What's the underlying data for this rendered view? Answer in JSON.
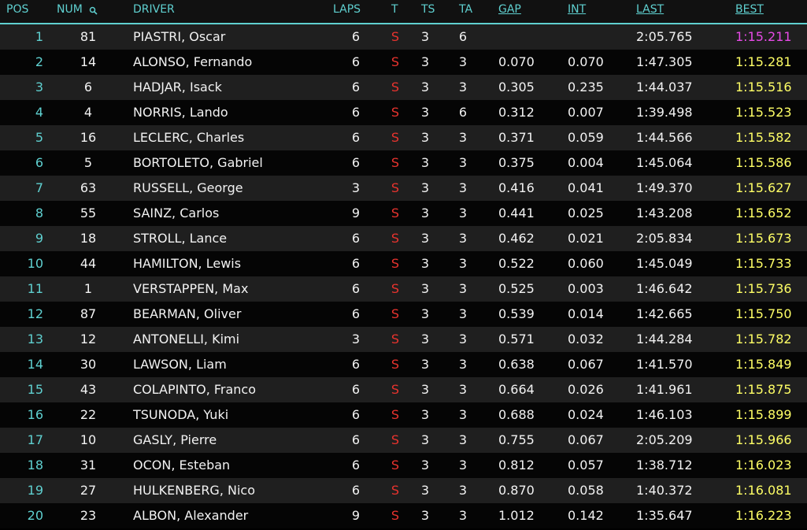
{
  "table": {
    "columns": [
      "POS",
      "NUM",
      "DRIVER",
      "LAPS",
      "T",
      "TS",
      "TA",
      "GAP",
      "INT",
      "LAST",
      "BEST"
    ],
    "rows": [
      [
        1,
        81,
        "PIASTRI, Oscar",
        6,
        "S",
        3,
        6,
        null,
        null,
        "2:05.765",
        "1:15.211"
      ],
      [
        2,
        14,
        "ALONSO, Fernando",
        6,
        "S",
        3,
        3,
        "0.070",
        "0.070",
        "1:47.305",
        "1:15.281"
      ],
      [
        3,
        6,
        "HADJAR, Isack",
        6,
        "S",
        3,
        3,
        "0.305",
        "0.235",
        "1:44.037",
        "1:15.516"
      ],
      [
        4,
        4,
        "NORRIS, Lando",
        6,
        "S",
        3,
        6,
        "0.312",
        "0.007",
        "1:39.498",
        "1:15.523"
      ],
      [
        5,
        16,
        "LECLERC, Charles",
        6,
        "S",
        3,
        3,
        "0.371",
        "0.059",
        "1:44.566",
        "1:15.582"
      ],
      [
        6,
        5,
        "BORTOLETO, Gabriel",
        6,
        "S",
        3,
        3,
        "0.375",
        "0.004",
        "1:45.064",
        "1:15.586"
      ],
      [
        7,
        63,
        "RUSSELL, George",
        3,
        "S",
        3,
        3,
        "0.416",
        "0.041",
        "1:49.370",
        "1:15.627"
      ],
      [
        8,
        55,
        "SAINZ, Carlos",
        9,
        "S",
        3,
        3,
        "0.441",
        "0.025",
        "1:43.208",
        "1:15.652"
      ],
      [
        9,
        18,
        "STROLL, Lance",
        6,
        "S",
        3,
        3,
        "0.462",
        "0.021",
        "2:05.834",
        "1:15.673"
      ],
      [
        10,
        44,
        "HAMILTON, Lewis",
        6,
        "S",
        3,
        3,
        "0.522",
        "0.060",
        "1:45.049",
        "1:15.733"
      ],
      [
        11,
        1,
        "VERSTAPPEN, Max",
        6,
        "S",
        3,
        3,
        "0.525",
        "0.003",
        "1:46.642",
        "1:15.736"
      ],
      [
        12,
        87,
        "BEARMAN, Oliver",
        6,
        "S",
        3,
        3,
        "0.539",
        "0.014",
        "1:42.665",
        "1:15.750"
      ],
      [
        13,
        12,
        "ANTONELLI, Kimi",
        3,
        "S",
        3,
        3,
        "0.571",
        "0.032",
        "1:44.284",
        "1:15.782"
      ],
      [
        14,
        30,
        "LAWSON, Liam",
        6,
        "S",
        3,
        3,
        "0.638",
        "0.067",
        "1:41.570",
        "1:15.849"
      ],
      [
        15,
        43,
        "COLAPINTO, Franco",
        6,
        "S",
        3,
        3,
        "0.664",
        "0.026",
        "1:41.961",
        "1:15.875"
      ],
      [
        16,
        22,
        "TSUNODA, Yuki",
        6,
        "S",
        3,
        3,
        "0.688",
        "0.024",
        "1:46.103",
        "1:15.899"
      ],
      [
        17,
        10,
        "GASLY, Pierre",
        6,
        "S",
        3,
        3,
        "0.755",
        "0.067",
        "2:05.209",
        "1:15.966"
      ],
      [
        18,
        31,
        "OCON, Esteban",
        6,
        "S",
        3,
        3,
        "0.812",
        "0.057",
        "1:38.712",
        "1:16.023"
      ],
      [
        19,
        27,
        "HULKENBERG, Nico",
        6,
        "S",
        3,
        3,
        "0.870",
        "0.058",
        "1:40.372",
        "1:16.081"
      ],
      [
        20,
        23,
        "ALBON, Alexander",
        9,
        "S",
        3,
        3,
        "1.012",
        "0.142",
        "1:35.647",
        "1:16.223"
      ]
    ]
  }
}
